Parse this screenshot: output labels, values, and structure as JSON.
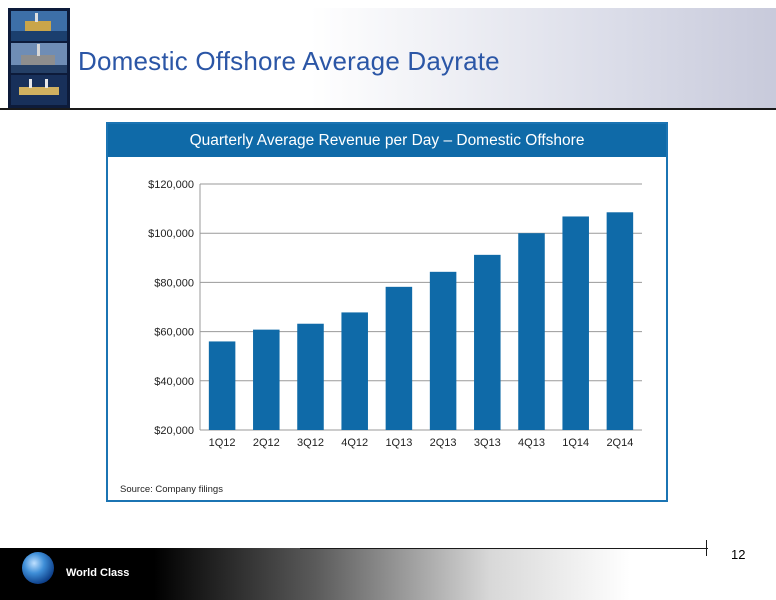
{
  "header": {
    "title": "Domestic Offshore Average Dayrate"
  },
  "panel": {
    "title": "Quarterly Average Revenue per Day – Domestic Offshore",
    "source": "Source: Company filings"
  },
  "footer": {
    "brand": "World Class",
    "page_number": "12"
  },
  "colors": {
    "bar": "#0f6aa8",
    "title_blue": "#2b56a6",
    "panel_header": "#0f6aa8"
  },
  "chart_data": {
    "type": "bar",
    "title": "Quarterly Average Revenue per Day – Domestic Offshore",
    "xlabel": "",
    "ylabel": "",
    "categories": [
      "1Q12",
      "2Q12",
      "3Q12",
      "4Q12",
      "1Q13",
      "2Q13",
      "3Q13",
      "4Q13",
      "1Q14",
      "2Q14"
    ],
    "values": [
      56000,
      60800,
      63200,
      67800,
      78200,
      84300,
      91200,
      100000,
      106800,
      108500
    ],
    "ylim": [
      20000,
      120000
    ],
    "yticks": [
      20000,
      40000,
      60000,
      80000,
      100000,
      120000
    ],
    "ytick_labels": [
      "$20,000",
      "$40,000",
      "$60,000",
      "$80,000",
      "$100,000",
      "$120,000"
    ],
    "grid": true,
    "legend": "none"
  }
}
